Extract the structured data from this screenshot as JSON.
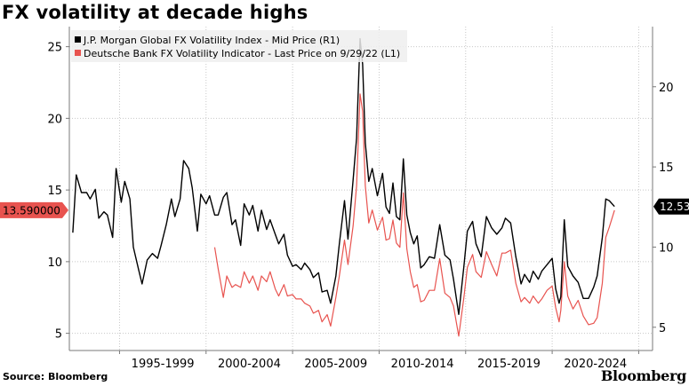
{
  "title": "FX volatility at decade highs",
  "source": "Source: Bloomberg",
  "brand": "Bloomberg",
  "colors": {
    "jpm": "#000000",
    "db": "#e8534f",
    "grid": "#c8c8c8"
  },
  "chart_data": {
    "type": "line",
    "x_range": [
      1991.8,
      2025.5
    ],
    "left_axis": {
      "ylim": [
        3.8,
        26.4
      ],
      "ticks": [
        5,
        10,
        15,
        20,
        25
      ]
    },
    "right_axis": {
      "ylim": [
        3.55,
        23.75
      ],
      "ticks": [
        5,
        10,
        15,
        20
      ]
    },
    "x_tick_labels": [
      "1995-1999",
      "2000-2004",
      "2005-2009",
      "2010-2014",
      "2015-2019",
      "2020-2024"
    ],
    "x_tick_positions": [
      1997.2,
      2002.2,
      2007.2,
      2012.2,
      2017.2,
      2022.2
    ],
    "x_gridlines": [
      1994.7,
      1999.7,
      2004.7,
      2009.7,
      2014.7,
      2019.7,
      2024.7
    ],
    "legend": {
      "position": "top-left",
      "entries": [
        "J.P. Morgan Global FX Volatility Index - Mid Price (R1)",
        "Deutsche Bank FX Volatility Indicator - Last Price on 9/29/22 (L1)"
      ]
    },
    "last_value_labels": {
      "left": "13.590000",
      "right": "12.53"
    },
    "series": [
      {
        "name": "J.P. Morgan Global FX Volatility Index - Mid Price (R1)",
        "axis": "right",
        "x": [
          1992.0,
          1992.2,
          1992.5,
          1992.8,
          1993.0,
          1993.3,
          1993.5,
          1993.8,
          1994.0,
          1994.3,
          1994.5,
          1994.8,
          1995.0,
          1995.3,
          1995.5,
          1995.8,
          1996.0,
          1996.3,
          1996.6,
          1996.9,
          1997.1,
          1997.4,
          1997.7,
          1997.9,
          1998.2,
          1998.4,
          1998.7,
          1998.9,
          1999.2,
          1999.4,
          1999.7,
          1999.9,
          2000.2,
          2000.4,
          2000.7,
          2000.9,
          2001.2,
          2001.4,
          2001.7,
          2001.9,
          2002.2,
          2002.4,
          2002.7,
          2002.9,
          2003.2,
          2003.4,
          2003.7,
          2003.9,
          2004.2,
          2004.4,
          2004.7,
          2004.9,
          2005.2,
          2005.4,
          2005.7,
          2005.9,
          2006.2,
          2006.4,
          2006.7,
          2006.9,
          2007.2,
          2007.4,
          2007.7,
          2007.9,
          2008.2,
          2008.4,
          2008.6,
          2008.75,
          2008.9,
          2009.1,
          2009.3,
          2009.6,
          2009.9,
          2010.1,
          2010.3,
          2010.5,
          2010.7,
          2010.9,
          2011.1,
          2011.3,
          2011.5,
          2011.7,
          2011.9,
          2012.1,
          2012.3,
          2012.6,
          2012.9,
          2013.2,
          2013.5,
          2013.8,
          2014.0,
          2014.3,
          2014.6,
          2014.8,
          2015.1,
          2015.3,
          2015.6,
          2015.9,
          2016.2,
          2016.5,
          2016.8,
          2017.0,
          2017.3,
          2017.6,
          2017.9,
          2018.1,
          2018.4,
          2018.6,
          2018.9,
          2019.1,
          2019.4,
          2019.7,
          2019.9,
          2020.1,
          2020.2,
          2020.4,
          2020.6,
          2020.9,
          2021.2,
          2021.5,
          2021.8,
          2022.1,
          2022.3,
          2022.6,
          2022.8,
          2023.0,
          2023.3
        ],
        "y": [
          10.9,
          14.5,
          13.4,
          13.4,
          13.0,
          13.6,
          11.8,
          12.2,
          12.0,
          10.6,
          14.9,
          12.8,
          14.1,
          13.0,
          10.0,
          8.6,
          7.7,
          9.2,
          9.6,
          9.3,
          10.1,
          11.4,
          13.0,
          11.9,
          13.0,
          15.4,
          14.9,
          13.7,
          11.0,
          13.3,
          12.7,
          13.2,
          12.0,
          12.0,
          13.1,
          13.4,
          11.4,
          11.7,
          10.1,
          12.7,
          12.0,
          12.6,
          11.0,
          12.3,
          11.1,
          11.7,
          10.8,
          10.2,
          10.8,
          9.5,
          8.8,
          8.9,
          8.6,
          9.0,
          8.6,
          8.1,
          8.4,
          7.2,
          7.3,
          6.5,
          8.2,
          10.2,
          12.9,
          10.5,
          14.2,
          16.8,
          23.0,
          21.4,
          16.5,
          14.1,
          14.9,
          13.2,
          14.6,
          12.5,
          12.1,
          14.0,
          11.9,
          11.7,
          15.5,
          12.0,
          10.9,
          10.2,
          10.7,
          8.7,
          8.9,
          9.4,
          9.3,
          11.4,
          9.5,
          9.2,
          8.0,
          5.8,
          8.8,
          11.0,
          11.6,
          10.2,
          9.4,
          11.9,
          11.2,
          10.8,
          11.2,
          11.8,
          11.5,
          9.4,
          7.7,
          8.3,
          7.8,
          8.5,
          8.0,
          8.5,
          8.9,
          9.3,
          7.4,
          6.5,
          6.9,
          11.7,
          8.8,
          8.2,
          7.8,
          6.8,
          6.8,
          7.5,
          8.2,
          10.6,
          13.0,
          12.9,
          12.53
        ]
      },
      {
        "name": "Deutsche Bank FX Volatility Indicator - Last Price on 9/29/22 (L1)",
        "axis": "left",
        "x": [
          2000.2,
          2000.4,
          2000.7,
          2000.9,
          2001.2,
          2001.4,
          2001.7,
          2001.9,
          2002.2,
          2002.4,
          2002.7,
          2002.9,
          2003.2,
          2003.4,
          2003.7,
          2003.9,
          2004.2,
          2004.4,
          2004.7,
          2004.9,
          2005.2,
          2005.4,
          2005.7,
          2005.9,
          2006.2,
          2006.4,
          2006.7,
          2006.9,
          2007.2,
          2007.4,
          2007.7,
          2007.9,
          2008.2,
          2008.4,
          2008.6,
          2008.75,
          2008.9,
          2009.1,
          2009.3,
          2009.6,
          2009.9,
          2010.1,
          2010.3,
          2010.5,
          2010.7,
          2010.9,
          2011.1,
          2011.3,
          2011.5,
          2011.7,
          2011.9,
          2012.1,
          2012.3,
          2012.6,
          2012.9,
          2013.2,
          2013.5,
          2013.8,
          2014.0,
          2014.3,
          2014.6,
          2014.8,
          2015.1,
          2015.3,
          2015.6,
          2015.9,
          2016.2,
          2016.5,
          2016.8,
          2017.0,
          2017.3,
          2017.6,
          2017.9,
          2018.1,
          2018.4,
          2018.6,
          2018.9,
          2019.1,
          2019.4,
          2019.7,
          2019.9,
          2020.1,
          2020.2,
          2020.4,
          2020.6,
          2020.9,
          2021.2,
          2021.5,
          2021.8,
          2022.1,
          2022.3,
          2022.6,
          2022.8,
          2023.0,
          2023.3
        ],
        "y": [
          11.0,
          9.5,
          7.5,
          9.0,
          8.2,
          8.4,
          8.2,
          9.3,
          8.5,
          9.0,
          8.0,
          9.0,
          8.6,
          9.3,
          8.1,
          7.6,
          8.4,
          7.6,
          7.7,
          7.4,
          7.4,
          7.1,
          6.9,
          6.4,
          6.6,
          5.8,
          6.3,
          5.5,
          7.5,
          9.0,
          11.5,
          9.8,
          12.5,
          15.3,
          21.7,
          20.5,
          15.3,
          12.7,
          13.6,
          12.2,
          13.1,
          11.5,
          11.6,
          12.9,
          11.3,
          11.0,
          14.8,
          10.9,
          9.3,
          8.2,
          8.4,
          7.2,
          7.3,
          8.0,
          8.0,
          10.2,
          7.8,
          7.5,
          6.9,
          4.8,
          7.5,
          9.6,
          10.5,
          9.3,
          8.9,
          10.7,
          9.8,
          9.0,
          10.6,
          10.6,
          10.8,
          8.5,
          7.2,
          7.5,
          7.1,
          7.6,
          7.1,
          7.4,
          8.0,
          8.3,
          6.8,
          5.8,
          6.6,
          10.0,
          7.6,
          6.7,
          7.3,
          6.2,
          5.6,
          5.7,
          6.1,
          8.5,
          11.7,
          12.4,
          13.59
        ]
      }
    ]
  }
}
